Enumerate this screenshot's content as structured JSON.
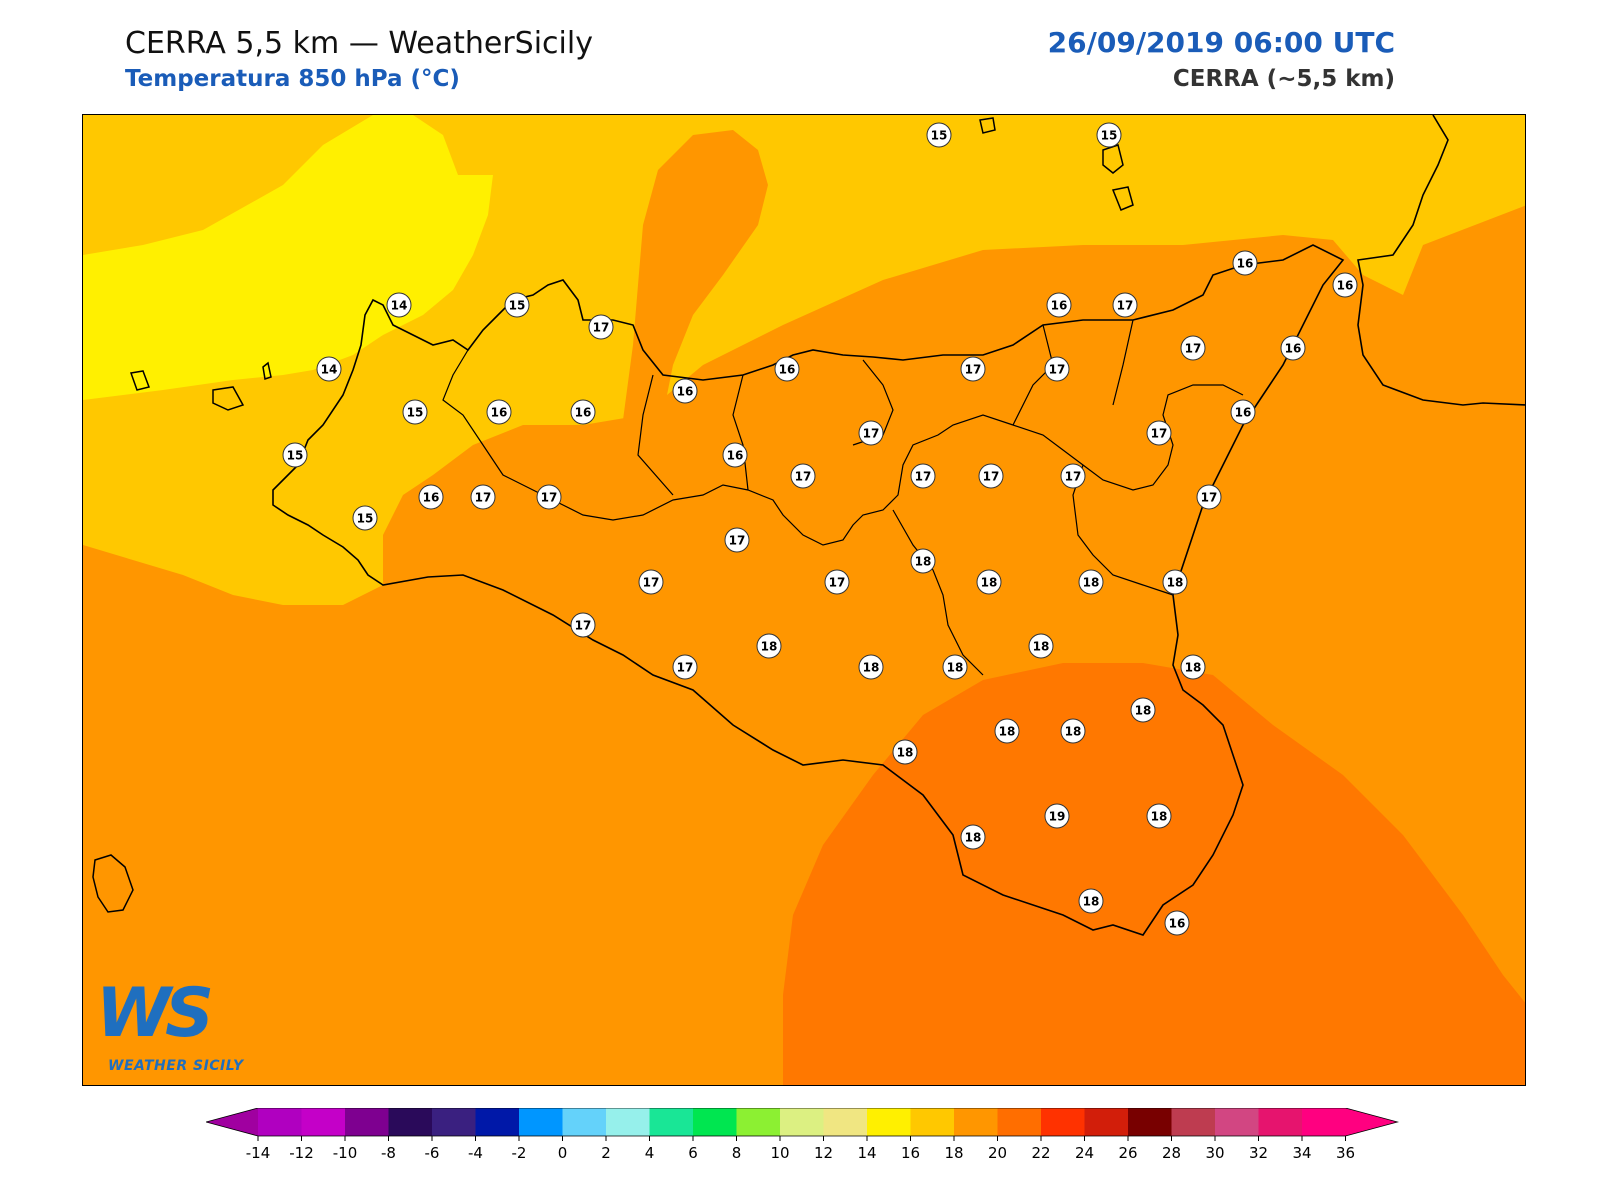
{
  "header": {
    "title": "CERRA 5,5 km — WeatherSicily",
    "subtitle": "Temperatura 850 hPa (°C)",
    "datetime": "26/09/2019 06:00 UTC",
    "model": "CERRA (~5,5 km)"
  },
  "logo": {
    "mark": "WS",
    "text": "WEATHER SICILY",
    "icon": "weather-sicily-logo"
  },
  "legend": {
    "ticks": [
      "-14",
      "-12",
      "-10",
      "-8",
      "-6",
      "-4",
      "-2",
      "0",
      "2",
      "4",
      "6",
      "8",
      "10",
      "12",
      "14",
      "16",
      "18",
      "20",
      "22",
      "24",
      "26",
      "28",
      "30",
      "32",
      "34",
      "36"
    ],
    "colors": [
      "#b000c0",
      "#c400c8",
      "#7e0090",
      "#2a0a5a",
      "#3a2080",
      "#0018a8",
      "#0096ff",
      "#64d2fa",
      "#96f0eb",
      "#19e696",
      "#00e650",
      "#8cf032",
      "#dcf082",
      "#f0e682",
      "#fff000",
      "#ffc800",
      "#ff9600",
      "#ff6e00",
      "#ff3200",
      "#d21e0a",
      "#780000",
      "#be3c50",
      "#d24682",
      "#e6146e",
      "#ff0080"
    ],
    "under_color": "#a000a0",
    "over_color": "#ff0080"
  },
  "map_colors": {
    "t14": "#fff000",
    "t15": "#ffc800",
    "t16_17": "#ff9600",
    "t18": "#ff7800",
    "coast": "#000000"
  },
  "stations": [
    {
      "v": "15"
    },
    {
      "v": "15"
    },
    {
      "v": "14"
    },
    {
      "v": "15"
    },
    {
      "v": "17"
    },
    {
      "v": "14"
    },
    {
      "v": "15"
    },
    {
      "v": "16"
    },
    {
      "v": "16"
    },
    {
      "v": "16"
    },
    {
      "v": "16"
    },
    {
      "v": "15"
    },
    {
      "v": "16"
    },
    {
      "v": "15"
    },
    {
      "v": "17"
    },
    {
      "v": "17"
    },
    {
      "v": "16"
    },
    {
      "v": "17"
    },
    {
      "v": "17"
    },
    {
      "v": "17"
    },
    {
      "v": "16"
    },
    {
      "v": "17"
    },
    {
      "v": "17"
    },
    {
      "v": "17"
    },
    {
      "v": "16"
    },
    {
      "v": "16"
    },
    {
      "v": "17"
    },
    {
      "v": "16"
    },
    {
      "v": "16"
    },
    {
      "v": "17"
    },
    {
      "v": "17"
    },
    {
      "v": "17"
    },
    {
      "v": "17"
    },
    {
      "v": "17"
    },
    {
      "v": "17"
    },
    {
      "v": "17"
    },
    {
      "v": "18"
    },
    {
      "v": "18"
    },
    {
      "v": "18"
    },
    {
      "v": "17"
    },
    {
      "v": "17"
    },
    {
      "v": "18"
    },
    {
      "v": "18"
    },
    {
      "v": "18"
    },
    {
      "v": "18"
    },
    {
      "v": "18"
    },
    {
      "v": "18"
    },
    {
      "v": "18"
    },
    {
      "v": "18"
    },
    {
      "v": "18"
    },
    {
      "v": "18"
    },
    {
      "v": "19"
    },
    {
      "v": "18"
    },
    {
      "v": "18"
    },
    {
      "v": "18"
    },
    {
      "v": "16"
    }
  ]
}
